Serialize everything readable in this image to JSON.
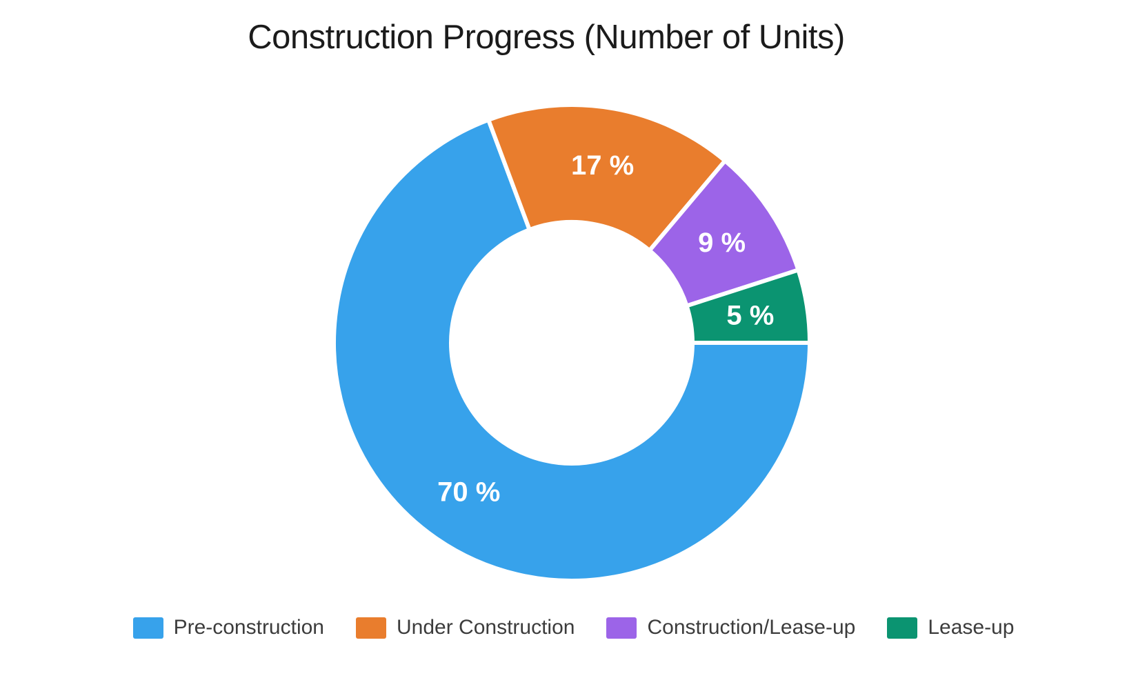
{
  "chart_data": {
    "type": "pie",
    "subtype": "donut",
    "title": "Construction Progress (Number of Units)",
    "categories": [
      "Pre-construction",
      "Under Construction",
      "Construction/Lease-up",
      "Lease-up"
    ],
    "values": [
      70,
      17,
      9,
      5
    ],
    "value_labels": [
      "70 %",
      "17 %",
      "9 %",
      "5 %"
    ],
    "colors": [
      "#37A2EB",
      "#E97D2D",
      "#9C64E8",
      "#0B9471"
    ],
    "slice_border_color": "#FFFFFF",
    "value_label_color": "#FFFFFF",
    "background": "#FFFFFF",
    "legend_position": "bottom",
    "start_angle": "east",
    "direction": "clockwise",
    "grid": false
  }
}
